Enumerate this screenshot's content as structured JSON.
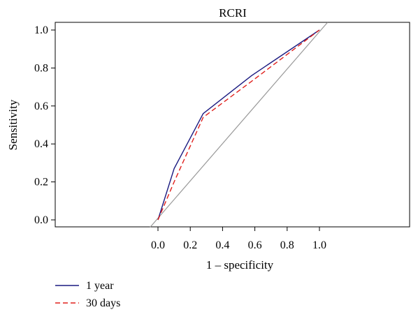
{
  "chart_data": {
    "type": "line",
    "title": "RCRI",
    "xlabel": "1 – specificity",
    "ylabel": "Sensitivity",
    "xlim": [
      -0.05,
      1.05
    ],
    "ylim": [
      -0.04,
      1.04
    ],
    "xticks": [
      "0.0",
      "0.2",
      "0.4",
      "0.6",
      "0.8",
      "1.0"
    ],
    "yticks": [
      "0.0",
      "0.2",
      "0.4",
      "0.6",
      "0.8",
      "1.0"
    ],
    "reference_line": {
      "x": [
        -0.05,
        1.05
      ],
      "y": [
        -0.04,
        1.04
      ],
      "color": "#999999"
    },
    "series": [
      {
        "name": "1 year",
        "color": "#1a1a80",
        "dash": "solid",
        "x": [
          0.0,
          0.1,
          0.28,
          0.58,
          1.0
        ],
        "y": [
          0.0,
          0.27,
          0.56,
          0.76,
          1.0
        ]
      },
      {
        "name": "30 days",
        "color": "#e0201c",
        "dash": "dashed",
        "x": [
          0.0,
          0.1,
          0.28,
          0.58,
          1.0
        ],
        "y": [
          0.0,
          0.2,
          0.54,
          0.73,
          1.0
        ]
      }
    ],
    "legend_position": "bottom-left",
    "grid": false
  }
}
